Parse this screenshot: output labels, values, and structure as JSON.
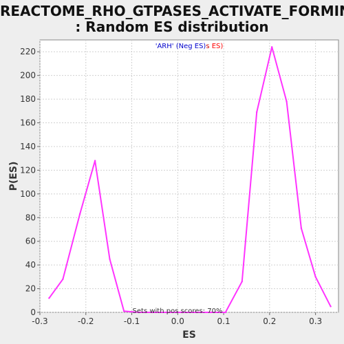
{
  "title_line1": "REACTOME_RHO_GTPASES_ACTIVATE_FORMINS",
  "title_line2": ": Random ES distribution",
  "chart_data": {
    "type": "line",
    "xlabel": "ES",
    "ylabel": "P(ES)",
    "xlim": [
      -0.3,
      0.35
    ],
    "ylim": [
      0,
      230
    ],
    "x_ticks": [
      "-0.3",
      "-0.2",
      "-0.1",
      "0.0",
      "0.1",
      "0.2",
      "0.3"
    ],
    "y_ticks": [
      "0",
      "20",
      "40",
      "60",
      "80",
      "100",
      "120",
      "140",
      "160",
      "180",
      "200",
      "220"
    ],
    "grid": true,
    "legend": {
      "position": "top-center",
      "parts": [
        {
          "text": "'ARH' (Neg ES)",
          "color": "#0000cc"
        },
        {
          "text": "s",
          "color": "#cc0000"
        },
        {
          "text": " ES)",
          "color": "#ff0000"
        }
      ]
    },
    "annotation": "Sets with pos scores: 70%",
    "series": [
      {
        "color": "#ff33ff",
        "x": [
          -0.28,
          -0.25,
          -0.213,
          -0.18,
          -0.148,
          -0.117,
          -0.085,
          -0.055,
          -0.022,
          0.01,
          0.04,
          0.072,
          0.104,
          0.14,
          0.172,
          0.205,
          0.237,
          0.269,
          0.3,
          0.333
        ],
        "y": [
          12,
          28,
          83,
          128,
          45,
          1,
          0,
          0,
          0,
          0,
          0,
          0,
          0,
          26,
          169,
          224,
          178,
          71,
          30,
          5
        ]
      }
    ]
  }
}
